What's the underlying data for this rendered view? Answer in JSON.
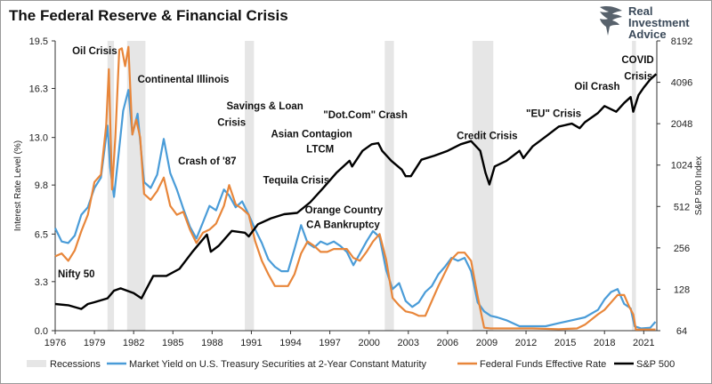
{
  "header": {
    "title": "The Federal Reserve & Financial Crisis"
  },
  "logo": {
    "line1": "Real",
    "line2": "Investment",
    "line3": "Advice"
  },
  "chart_data": {
    "type": "line",
    "title": "The Federal Reserve & Financial Crisis",
    "ylabel": "Interest Rate Level (%)",
    "y2label": "S&P 500 Index",
    "xlim": [
      1976,
      2022
    ],
    "ylim": [
      0,
      19.5
    ],
    "y2lim": [
      64,
      8192
    ],
    "y2scale": "log2",
    "x_ticks": [
      "1976",
      "1979",
      "1982",
      "1985",
      "1988",
      "1991",
      "1994",
      "1997",
      "2000",
      "2003",
      "2006",
      "2009",
      "2012",
      "2015",
      "2018",
      "2021"
    ],
    "y_ticks": [
      "0.0",
      "3.3",
      "6.5",
      "9.8",
      "13.0",
      "16.3",
      "19.5"
    ],
    "y2_ticks": [
      "64",
      "128",
      "256",
      "512",
      "1024",
      "2048",
      "4096",
      "8192"
    ],
    "grid": false,
    "legend_position": "bottom",
    "recessions": [
      [
        1980.0,
        1980.5
      ],
      [
        1981.5,
        1982.9
      ],
      [
        1990.5,
        1991.2
      ],
      [
        2001.2,
        2001.9
      ],
      [
        2007.9,
        2009.5
      ],
      [
        2020.1,
        2020.4
      ]
    ],
    "annotations": [
      {
        "text": "Oil Crisis",
        "x": 1977.3,
        "y": 18.6
      },
      {
        "text": "Continental Illinois",
        "x": 1982.3,
        "y": 16.7
      },
      {
        "text": "Savings & Loan",
        "x": 1989.1,
        "y": 14.9
      },
      {
        "text": "Crisis",
        "x": 1988.4,
        "y": 13.8
      },
      {
        "text": "\"Dot.Com\" Crash",
        "x": 1996.5,
        "y": 14.3
      },
      {
        "text": "Asian Contagion",
        "x": 1992.5,
        "y": 13.0
      },
      {
        "text": "LTCM",
        "x": 1995.2,
        "y": 12.0
      },
      {
        "text": "Credit Crisis",
        "x": 2006.7,
        "y": 12.9
      },
      {
        "text": "\"EU\" Crisis",
        "x": 2012.0,
        "y": 14.4
      },
      {
        "text": "Oil Crash",
        "x": 2015.7,
        "y": 16.2
      },
      {
        "text": "COVID",
        "x": 2019.3,
        "y": 18.0
      },
      {
        "text": "Crisis",
        "x": 2019.5,
        "y": 16.9
      },
      {
        "text": "Crash of '87",
        "x": 1985.4,
        "y": 11.2
      },
      {
        "text": "Tequila Crisis",
        "x": 1991.9,
        "y": 9.9
      },
      {
        "text": "Orange Country",
        "x": 1995.1,
        "y": 7.9
      },
      {
        "text": "CA Bankruptcy",
        "x": 1995.2,
        "y": 6.9
      },
      {
        "text": "Nifty 50",
        "x": 1976.2,
        "y": 3.6
      }
    ],
    "series": [
      {
        "name": "Market Yield on U.S. Treasury Securities at 2-Year Constant Maturity",
        "color": "#4a9cd8",
        "axis": "left",
        "x": [
          1976.0,
          1976.5,
          1977.0,
          1977.5,
          1978.0,
          1978.5,
          1979.0,
          1979.5,
          1980.0,
          1980.2,
          1980.5,
          1980.9,
          1981.2,
          1981.6,
          1981.9,
          1982.3,
          1982.8,
          1983.3,
          1983.8,
          1984.3,
          1984.8,
          1985.3,
          1985.8,
          1986.3,
          1986.8,
          1987.3,
          1987.8,
          1988.3,
          1988.9,
          1989.3,
          1989.8,
          1990.3,
          1990.8,
          1991.3,
          1991.8,
          1992.3,
          1992.8,
          1993.3,
          1993.8,
          1994.3,
          1994.8,
          1995.3,
          1995.8,
          1996.3,
          1996.8,
          1997.3,
          1997.8,
          1998.3,
          1998.8,
          1999.3,
          1999.8,
          2000.3,
          2000.8,
          2001.3,
          2001.8,
          2002.3,
          2002.8,
          2003.3,
          2003.8,
          2004.3,
          2004.8,
          2005.3,
          2005.8,
          2006.3,
          2006.8,
          2007.3,
          2007.8,
          2008.3,
          2008.8,
          2009.3,
          2009.8,
          2010.5,
          2011.5,
          2012.5,
          2013.5,
          2014.5,
          2015.5,
          2016.5,
          2017.5,
          2018.0,
          2018.5,
          2019.0,
          2019.5,
          2020.0,
          2020.3,
          2020.8,
          2021.5,
          2021.9
        ],
        "values": [
          6.9,
          6.0,
          5.9,
          6.4,
          7.8,
          8.3,
          9.6,
          10.3,
          13.8,
          11.0,
          9.0,
          12.3,
          14.8,
          16.2,
          13.2,
          14.6,
          10.0,
          9.6,
          10.5,
          12.9,
          10.6,
          9.5,
          8.2,
          7.0,
          6.2,
          7.3,
          8.4,
          8.1,
          9.5,
          9.1,
          8.3,
          8.7,
          7.8,
          6.8,
          5.9,
          4.8,
          4.3,
          4.0,
          4.0,
          5.5,
          7.1,
          5.9,
          5.6,
          6.0,
          5.8,
          6.0,
          5.7,
          5.3,
          4.4,
          5.2,
          6.0,
          6.7,
          6.3,
          4.1,
          2.8,
          3.2,
          2.0,
          1.6,
          1.9,
          2.6,
          3.0,
          3.8,
          4.3,
          4.9,
          4.7,
          4.9,
          4.0,
          1.9,
          1.3,
          1.0,
          0.9,
          0.7,
          0.3,
          0.3,
          0.3,
          0.5,
          0.7,
          0.9,
          1.4,
          2.1,
          2.6,
          2.8,
          1.8,
          1.5,
          0.3,
          0.15,
          0.2,
          0.6
        ]
      },
      {
        "name": "Federal Funds Effective Rate",
        "color": "#e8863a",
        "axis": "left",
        "x": [
          1976.0,
          1976.5,
          1977.0,
          1977.5,
          1978.0,
          1978.5,
          1979.0,
          1979.5,
          1979.9,
          1980.1,
          1980.35,
          1980.6,
          1980.9,
          1981.1,
          1981.35,
          1981.6,
          1981.9,
          1982.2,
          1982.5,
          1982.8,
          1983.3,
          1983.8,
          1984.3,
          1984.8,
          1985.3,
          1985.8,
          1986.3,
          1986.8,
          1987.3,
          1987.8,
          1988.3,
          1988.9,
          1989.3,
          1989.8,
          1990.3,
          1990.8,
          1991.3,
          1991.8,
          1992.3,
          1992.8,
          1993.3,
          1993.8,
          1994.3,
          1994.8,
          1995.3,
          1995.8,
          1996.3,
          1996.8,
          1997.3,
          1997.8,
          1998.3,
          1998.8,
          1999.3,
          1999.8,
          2000.3,
          2000.8,
          2001.3,
          2001.8,
          2002.3,
          2002.8,
          2003.3,
          2003.8,
          2004.3,
          2004.8,
          2005.3,
          2005.8,
          2006.3,
          2006.8,
          2007.3,
          2007.8,
          2008.3,
          2008.8,
          2009.3,
          2010.5,
          2012.5,
          2014.5,
          2015.9,
          2016.5,
          2017.5,
          2018.0,
          2018.5,
          2019.0,
          2019.5,
          2019.9,
          2020.2,
          2020.4,
          2021.0,
          2021.9
        ],
        "values": [
          5.0,
          5.2,
          4.7,
          5.4,
          6.7,
          7.8,
          10.0,
          10.5,
          13.8,
          17.6,
          9.5,
          13.0,
          18.9,
          19.0,
          17.8,
          19.1,
          13.2,
          14.2,
          13.0,
          9.2,
          8.8,
          9.4,
          10.3,
          8.4,
          7.8,
          8.0,
          6.8,
          5.9,
          6.6,
          6.8,
          7.2,
          8.4,
          9.8,
          8.5,
          8.2,
          7.8,
          6.0,
          4.7,
          3.8,
          3.0,
          3.0,
          3.0,
          3.8,
          5.2,
          6.0,
          5.7,
          5.3,
          5.3,
          5.5,
          5.5,
          5.5,
          4.9,
          4.7,
          5.3,
          6.0,
          6.5,
          4.8,
          2.2,
          1.7,
          1.3,
          1.2,
          1.0,
          1.0,
          2.0,
          3.0,
          3.9,
          4.8,
          5.25,
          5.25,
          4.7,
          2.3,
          0.2,
          0.15,
          0.15,
          0.15,
          0.1,
          0.15,
          0.4,
          1.1,
          1.4,
          1.9,
          2.4,
          2.4,
          1.6,
          1.1,
          0.07,
          0.08,
          0.08
        ]
      },
      {
        "name": "S&P 500",
        "color": "#000000",
        "axis": "right",
        "x": [
          1976.0,
          1977.0,
          1978.0,
          1978.5,
          1979.0,
          1980.0,
          1980.5,
          1981.0,
          1982.0,
          1982.6,
          1983.5,
          1984.5,
          1985.5,
          1986.5,
          1987.6,
          1987.9,
          1988.5,
          1989.5,
          1990.5,
          1990.8,
          1991.5,
          1992.5,
          1993.5,
          1994.5,
          1995.5,
          1996.5,
          1997.5,
          1998.5,
          1998.7,
          1999.5,
          2000.2,
          2000.7,
          2001.0,
          2001.7,
          2002.5,
          2002.8,
          2003.2,
          2004.0,
          2005.0,
          2006.0,
          2007.0,
          2007.8,
          2008.5,
          2008.9,
          2009.2,
          2009.6,
          2010.5,
          2011.5,
          2011.8,
          2012.5,
          2013.5,
          2014.5,
          2015.5,
          2016.1,
          2016.5,
          2017.5,
          2018.0,
          2018.9,
          2019.5,
          2020.0,
          2020.2,
          2020.6,
          2021.0,
          2021.5,
          2021.95
        ],
        "values": [
          100,
          98,
          92,
          100,
          103,
          110,
          125,
          130,
          120,
          110,
          160,
          160,
          180,
          240,
          320,
          240,
          265,
          340,
          330,
          310,
          380,
          420,
          450,
          460,
          550,
          700,
          900,
          1100,
          1000,
          1300,
          1450,
          1480,
          1300,
          1100,
          950,
          850,
          850,
          1120,
          1200,
          1300,
          1450,
          1530,
          1300,
          900,
          740,
          1000,
          1100,
          1300,
          1150,
          1400,
          1650,
          1950,
          2050,
          1900,
          2100,
          2450,
          2750,
          2500,
          2900,
          3200,
          2500,
          3300,
          3750,
          4300,
          4700
        ]
      }
    ]
  },
  "legend": {
    "recessions": "Recessions",
    "items": [
      {
        "label": "Market Yield on U.S. Treasury Securities at 2-Year Constant Maturity",
        "color": "#4a9cd8"
      },
      {
        "label": "Federal Funds Effective Rate",
        "color": "#e8863a"
      },
      {
        "label": "S&P 500",
        "color": "#000000"
      }
    ]
  }
}
